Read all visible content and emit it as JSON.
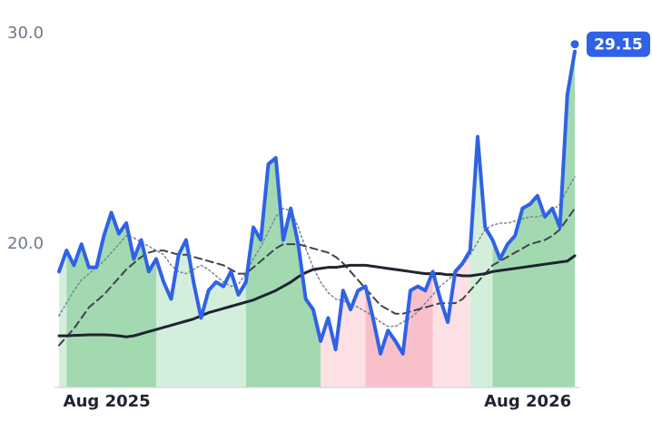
{
  "chart_data": {
    "type": "line",
    "xlim": [
      0,
      69
    ],
    "ylim": [
      13.2,
      30
    ],
    "yticks": [
      {
        "value": 30,
        "label": "30.0"
      },
      {
        "value": 20,
        "label": "20.0"
      }
    ],
    "xticks": [
      {
        "value": 6.4,
        "label": "Aug 2025"
      },
      {
        "value": 62.7,
        "label": "Aug 2026"
      }
    ],
    "bands": [
      {
        "start": 0,
        "end": 1,
        "color": "#d4eedc"
      },
      {
        "start": 1,
        "end": 13,
        "color": "#a3d9b1"
      },
      {
        "start": 13,
        "end": 25,
        "color": "#d4eedc"
      },
      {
        "start": 25,
        "end": 35,
        "color": "#a3d9b1"
      },
      {
        "start": 35,
        "end": 41,
        "color": "#fde0e4"
      },
      {
        "start": 41,
        "end": 50,
        "color": "#f9c0c9"
      },
      {
        "start": 50,
        "end": 55,
        "color": "#fde0e4"
      },
      {
        "start": 55,
        "end": 58,
        "color": "#d4eedc"
      },
      {
        "start": 58,
        "end": 69,
        "color": "#a3d9b1"
      }
    ],
    "series": [
      {
        "color": "#2f62e6",
        "style": "solid",
        "width": 4,
        "values": [
          18.7,
          19.7,
          19.0,
          20.0,
          18.9,
          18.9,
          20.4,
          21.5,
          20.5,
          21.0,
          19.3,
          20.2,
          18.7,
          19.3,
          18.2,
          17.4,
          19.5,
          20.2,
          18.2,
          16.5,
          17.8,
          18.2,
          18.0,
          18.7,
          17.6,
          18.2,
          20.8,
          20.2,
          23.8,
          24.1,
          20.2,
          21.7,
          20.0,
          17.4,
          16.9,
          15.4,
          16.5,
          15.0,
          17.8,
          16.9,
          17.8,
          18.0,
          16.5,
          14.8,
          15.9,
          15.4,
          14.8,
          17.8,
          18.0,
          17.8,
          18.7,
          17.4,
          16.3,
          18.7,
          19.1,
          19.7,
          25.1,
          20.8,
          20.2,
          19.3,
          20.0,
          20.4,
          21.7,
          21.9,
          22.3,
          21.3,
          21.7,
          20.8,
          27.1,
          29.15
        ]
      },
      {
        "color": "#1f2430",
        "style": "solid",
        "width": 3,
        "values": [
          15.65,
          15.65,
          15.67,
          15.68,
          15.7,
          15.7,
          15.7,
          15.68,
          15.65,
          15.6,
          15.65,
          15.75,
          15.85,
          15.95,
          16.05,
          16.15,
          16.25,
          16.35,
          16.45,
          16.6,
          16.75,
          16.85,
          16.95,
          17.05,
          17.15,
          17.25,
          17.35,
          17.5,
          17.65,
          17.8,
          18.0,
          18.2,
          18.45,
          18.65,
          18.8,
          18.85,
          18.9,
          18.9,
          18.95,
          19.0,
          19.0,
          19.0,
          18.95,
          18.9,
          18.85,
          18.8,
          18.75,
          18.7,
          18.65,
          18.6,
          18.6,
          18.6,
          18.55,
          18.55,
          18.5,
          18.5,
          18.55,
          18.6,
          18.7,
          18.75,
          18.8,
          18.85,
          18.9,
          18.95,
          19.0,
          19.05,
          19.1,
          19.15,
          19.2,
          19.45
        ]
      },
      {
        "color": "#3d4350",
        "style": "dashed",
        "width": 2,
        "values": [
          15.2,
          15.6,
          16.0,
          16.5,
          17.0,
          17.3,
          17.6,
          18.0,
          18.4,
          18.8,
          19.1,
          19.4,
          19.6,
          19.7,
          19.7,
          19.6,
          19.5,
          19.5,
          19.4,
          19.3,
          19.2,
          19.1,
          19.0,
          18.8,
          18.6,
          18.6,
          18.9,
          19.2,
          19.5,
          19.8,
          20.0,
          20.0,
          20.0,
          19.9,
          19.8,
          19.7,
          19.6,
          19.4,
          19.1,
          18.7,
          18.3,
          17.9,
          17.5,
          17.1,
          16.9,
          16.7,
          16.7,
          16.8,
          16.9,
          17.0,
          17.1,
          17.2,
          17.2,
          17.2,
          17.4,
          17.8,
          18.2,
          18.6,
          19.0,
          19.2,
          19.4,
          19.6,
          19.8,
          20.0,
          20.1,
          20.2,
          20.4,
          20.7,
          21.2,
          21.7
        ]
      },
      {
        "color": "#7a8494",
        "style": "dotted",
        "width": 1.5,
        "values": [
          16.6,
          17.2,
          17.8,
          18.3,
          18.6,
          18.9,
          19.2,
          19.6,
          20.0,
          20.4,
          20.3,
          20.1,
          19.9,
          19.7,
          19.5,
          19.0,
          18.7,
          18.6,
          18.8,
          19.0,
          18.8,
          18.5,
          18.2,
          18.0,
          18.1,
          18.6,
          19.3,
          19.9,
          20.6,
          21.3,
          21.7,
          21.6,
          20.8,
          19.8,
          18.9,
          18.2,
          17.7,
          17.4,
          17.3,
          17.2,
          17.0,
          16.8,
          16.6,
          16.3,
          16.1,
          16.1,
          16.3,
          16.5,
          16.8,
          17.2,
          17.6,
          18.0,
          18.3,
          18.6,
          19.0,
          19.5,
          20.1,
          20.7,
          20.9,
          21.0,
          21.0,
          21.1,
          21.2,
          21.3,
          21.3,
          21.4,
          21.6,
          21.9,
          22.6,
          23.2
        ]
      }
    ]
  }
}
